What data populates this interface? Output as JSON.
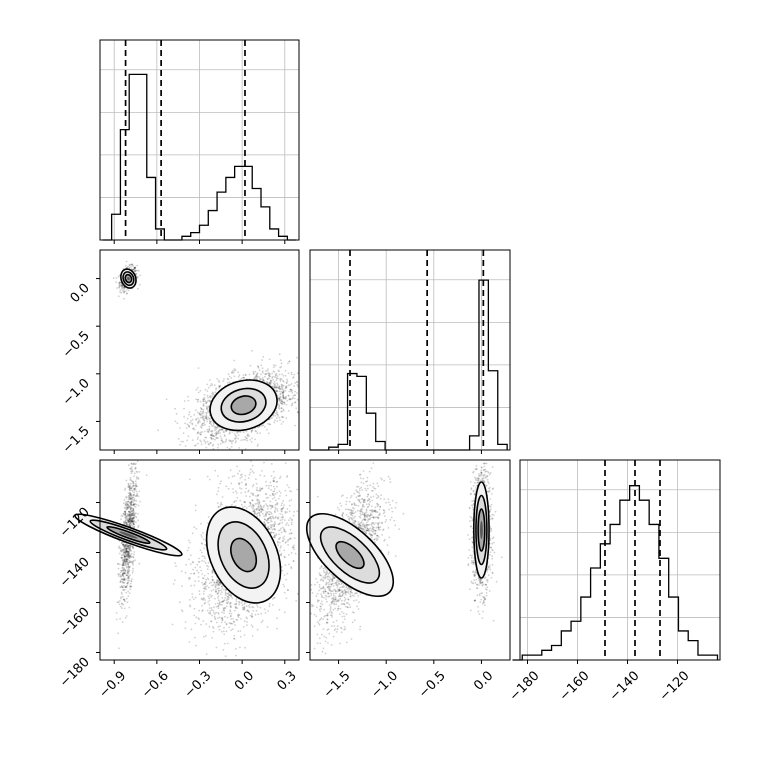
{
  "chart_data": {
    "type": "corner",
    "title": "",
    "parameters": [
      {
        "range": [
          -1.0,
          0.4
        ],
        "ticks": [
          -0.9,
          -0.6,
          -0.3,
          0.0,
          0.3
        ],
        "tick_labels": [
          "−0.9",
          "−0.6",
          "−0.3",
          "0.0",
          "0.3"
        ]
      },
      {
        "range": [
          -1.8,
          0.3
        ],
        "ticks": [
          -1.5,
          -1.0,
          -0.5,
          0.0
        ],
        "tick_labels": [
          "−1.5",
          "−1.0",
          "−0.5",
          "0.0"
        ]
      },
      {
        "range": [
          -183,
          -103
        ],
        "ticks": [
          -180,
          -160,
          -140,
          -120
        ],
        "tick_labels": [
          "−180",
          "−160",
          "−140",
          "−120"
        ]
      }
    ],
    "histograms": [
      {
        "param": 0,
        "bins": [
          -0.98,
          0.38
        ],
        "counts": [
          0,
          7,
          30,
          45,
          45,
          17,
          3,
          0,
          0,
          1,
          2,
          4,
          8,
          13,
          17,
          20,
          20,
          14,
          9,
          3,
          1,
          0
        ],
        "quantiles": [
          -0.82,
          -0.57,
          0.02
        ],
        "ymax": 50
      },
      {
        "param": 1,
        "bins": [
          -1.8,
          0.27
        ],
        "counts": [
          0,
          0,
          1,
          2,
          27,
          26,
          13,
          3,
          0,
          0,
          0,
          0,
          0,
          0,
          0,
          0,
          0,
          5,
          60,
          28,
          2
        ],
        "quantiles": [
          -1.38,
          -0.57,
          0.02
        ],
        "ymax": 65
      },
      {
        "param": 2,
        "bins": [
          -186,
          -104
        ],
        "counts": [
          0,
          1,
          1,
          2,
          3,
          6,
          8,
          13,
          19,
          24,
          28,
          33,
          36,
          33,
          28,
          21,
          13,
          6,
          4,
          1,
          1
        ],
        "quantiles": [
          -149,
          -137,
          -127
        ],
        "ymax": 38
      }
    ],
    "quantile_style": "dashed",
    "grid": true
  }
}
